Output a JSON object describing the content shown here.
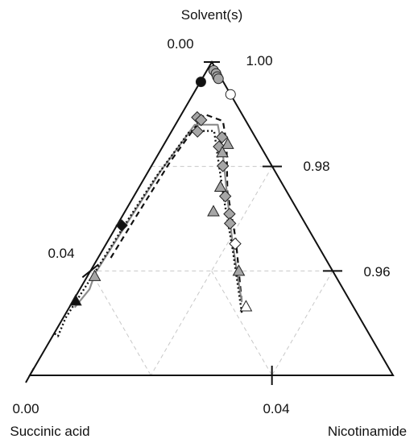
{
  "chart_data": {
    "type": "scatter",
    "subtype": "ternary-phase-diagram",
    "vertex_labels": {
      "top": "Solvent(s)",
      "left": "Succinic acid",
      "right": "Nicotinamide"
    },
    "tick_labels": {
      "left_top": "0.00",
      "right_top": "1.00",
      "right_mid": "0.98",
      "right_low": "0.96",
      "left_mid": "0.04",
      "bottom_left": "0.00",
      "bottom_mid": "0.04"
    },
    "axes": {
      "solvent_range": [
        0.94,
        1.0
      ],
      "nicotinamide_range": [
        0.0,
        0.06
      ],
      "succinic_acid_range": [
        0.0,
        0.06
      ]
    },
    "grid": true,
    "colors": {
      "axis": "#111111",
      "grid": "#c8c8c8",
      "gray_fill": "#a6a6a6",
      "gray_line": "#8c8c8c"
    },
    "series": [
      {
        "marker": "circle-black",
        "points": [
          [
            0.0001,
            0.9962
          ]
        ]
      },
      {
        "marker": "circle-gray",
        "points": [
          [
            0.0011,
            0.9984
          ],
          [
            0.0018,
            0.9978
          ],
          [
            0.0023,
            0.9972
          ],
          [
            0.0027,
            0.9968
          ]
        ]
      },
      {
        "marker": "circle-white",
        "points": [
          [
            0.0062,
            0.9938
          ]
        ]
      },
      {
        "marker": "diamond-gray",
        "points": [
          [
            0.0029,
            0.9894
          ],
          [
            0.0038,
            0.9889
          ],
          [
            0.0043,
            0.9867
          ],
          [
            0.0089,
            0.9856
          ],
          [
            0.0093,
            0.9838
          ],
          [
            0.0118,
            0.9801
          ],
          [
            0.0151,
            0.9743
          ],
          [
            0.0175,
            0.9709
          ],
          [
            0.0185,
            0.9691
          ]
        ]
      },
      {
        "marker": "diamond-black",
        "points": [
          [
            0.0008,
            0.9687
          ]
        ]
      },
      {
        "marker": "diamond-white",
        "points": [
          [
            0.0213,
            0.9652
          ]
        ]
      },
      {
        "marker": "triangle-gray",
        "points": [
          [
            0.0105,
            0.9843
          ],
          [
            0.0104,
            0.9827
          ],
          [
            0.0134,
            0.9761
          ],
          [
            0.0146,
            0.9714
          ],
          [
            0.0245,
            0.96
          ],
          [
            0.0012,
            0.959
          ]
        ]
      },
      {
        "marker": "triangle-black",
        "points": [
          [
            0.0004,
            0.9543
          ]
        ]
      },
      {
        "marker": "triangle-white",
        "points": [
          [
            0.0291,
            0.9532
          ]
        ]
      }
    ],
    "curves": [
      {
        "style": "dashed-black",
        "points": [
          [
            0.0021,
            0.9625
          ],
          [
            0.0023,
            0.97
          ],
          [
            0.0027,
            0.981
          ],
          [
            0.0038,
            0.99
          ],
          [
            0.0075,
            0.9887
          ],
          [
            0.0102,
            0.9845
          ],
          [
            0.015,
            0.9752
          ],
          [
            0.021,
            0.966
          ],
          [
            0.028,
            0.954
          ]
        ]
      },
      {
        "style": "solid-gray",
        "points": [
          [
            0.0009,
            0.953
          ],
          [
            0.0016,
            0.9565
          ],
          [
            0.001,
            0.9595
          ],
          [
            0.0015,
            0.97
          ],
          [
            0.002,
            0.979
          ],
          [
            0.0032,
            0.988
          ],
          [
            0.007,
            0.988
          ],
          [
            0.0103,
            0.983
          ],
          [
            0.015,
            0.975
          ],
          [
            0.021,
            0.965
          ],
          [
            0.028,
            0.954
          ]
        ]
      },
      {
        "style": "dotted-black",
        "points": [
          [
            0.0001,
            0.948
          ],
          [
            0.0009,
            0.9475
          ],
          [
            0.0004,
            0.951
          ],
          [
            0.0008,
            0.959
          ],
          [
            0.0013,
            0.97
          ],
          [
            0.0018,
            0.978
          ],
          [
            0.003,
            0.9868
          ],
          [
            0.007,
            0.9868
          ],
          [
            0.0103,
            0.9815
          ],
          [
            0.015,
            0.974
          ],
          [
            0.0215,
            0.964
          ],
          [
            0.029,
            0.952
          ]
        ]
      }
    ]
  }
}
